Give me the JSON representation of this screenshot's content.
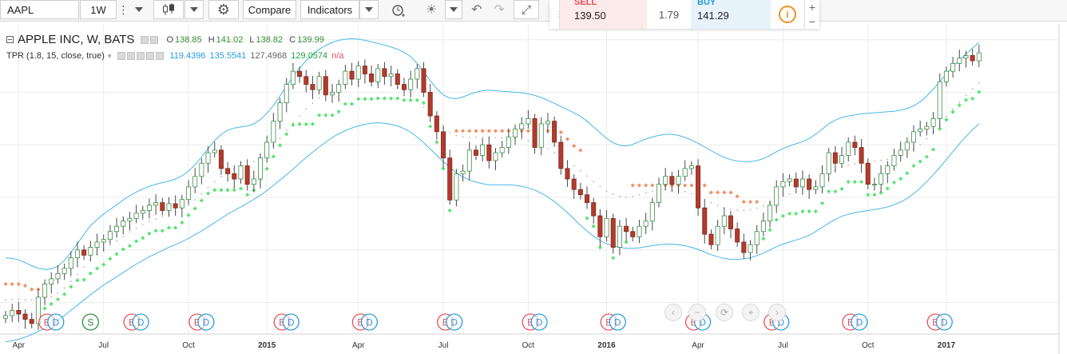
{
  "toolbar": {
    "symbol": "AAPL",
    "interval": "1W",
    "compare_label": "Compare",
    "indicators_label": "Indicators"
  },
  "trade": {
    "sell_label": "SELL",
    "sell_price": "139.50",
    "spread": "1.79",
    "buy_label": "BUY",
    "buy_price": "141.29",
    "info_icon": "i",
    "plus": "+",
    "minus": "−"
  },
  "legend": {
    "title": "APPLE INC, W, BATS",
    "open_label": "O",
    "open": "138.85",
    "high_label": "H",
    "high": "141.02",
    "low_label": "L",
    "low": "138.82",
    "close_label": "C",
    "close": "139.99",
    "indicator_name": "TPR (1.8, 15, close, true)",
    "indicator_values": [
      "119.4396",
      "135.5541",
      "127.4968",
      "129.0574",
      "n/a"
    ]
  },
  "colors": {
    "up_body": "#ffffff",
    "up_border": "#3d8f47",
    "down_body": "#b53a2b",
    "wick": "#4a4a4a",
    "band": "#47b8e8",
    "sar_green": "#4de36b",
    "sar_orange": "#f08a5d",
    "mid_dots": "#c8a8a8",
    "grid": "#ececec",
    "earnings_red": "#e8505b",
    "dividend_blue": "#2a9be0",
    "split_green": "#2e8b3a"
  },
  "nav_icons": [
    "chevron-left-icon",
    "minus-icon",
    "reset-icon",
    "plus-icon",
    "chevron-right-icon"
  ],
  "chart_data": {
    "type": "candlestick",
    "title": "APPLE INC, W, BATS",
    "ylim": [
      89,
      148
    ],
    "x_ticks": [
      {
        "label": "Apr",
        "week": 2,
        "bold": false
      },
      {
        "label": "Jul",
        "week": 15,
        "bold": false
      },
      {
        "label": "Oct",
        "week": 28,
        "bold": false
      },
      {
        "label": "2015",
        "week": 40,
        "bold": true
      },
      {
        "label": "Apr",
        "week": 54,
        "bold": false
      },
      {
        "label": "Jul",
        "week": 67,
        "bold": false
      },
      {
        "label": "Oct",
        "week": 80,
        "bold": false
      },
      {
        "label": "2016",
        "week": 92,
        "bold": true
      },
      {
        "label": "Apr",
        "week": 106,
        "bold": false
      },
      {
        "label": "Jul",
        "week": 119,
        "bold": false
      },
      {
        "label": "Oct",
        "week": 132,
        "bold": false
      },
      {
        "label": "2017",
        "week": 144,
        "bold": true
      }
    ],
    "closes": [
      92.5,
      93.5,
      92.8,
      91.8,
      91.0,
      96.0,
      98.5,
      99.5,
      100.5,
      101.5,
      103.5,
      105.0,
      104.0,
      105.5,
      106.5,
      107.0,
      108.5,
      109.5,
      110.5,
      111.0,
      112.0,
      112.5,
      113.5,
      114.0,
      112.5,
      113.8,
      113.0,
      114.6,
      117.0,
      119.0,
      121.5,
      123.5,
      124.0,
      120.5,
      119.5,
      118.5,
      121.0,
      117.5,
      118.5,
      122.5,
      125.5,
      129.5,
      133.0,
      136.5,
      139.0,
      138.0,
      136.5,
      135.5,
      138.0,
      134.5,
      135.0,
      136.5,
      139.0,
      137.5,
      140.0,
      138.5,
      137.0,
      139.5,
      138.0,
      138.5,
      136.5,
      135.5,
      137.5,
      139.5,
      135.0,
      130.5,
      127.5,
      122.5,
      114.5,
      119.5,
      120.0,
      124.0,
      123.0,
      125.0,
      122.0,
      123.5,
      124.5,
      126.5,
      128.0,
      129.0,
      130.0,
      124.5,
      129.0,
      129.5,
      125.5,
      120.5,
      118.5,
      116.5,
      115.5,
      114.0,
      111.5,
      107.5,
      111.0,
      105.5,
      109.5,
      108.5,
      107.5,
      109.5,
      110.5,
      114.0,
      117.5,
      119.0,
      117.5,
      119.0,
      120.5,
      121.0,
      113.0,
      108.0,
      106.0,
      109.5,
      111.5,
      109.0,
      106.5,
      104.5,
      106.0,
      108.5,
      110.5,
      113.5,
      117.0,
      118.0,
      118.5,
      117.0,
      118.5,
      116.5,
      117.0,
      119.5,
      123.5,
      121.5,
      123.0,
      125.5,
      124.5,
      121.5,
      117.5,
      117.5,
      119.5,
      121.0,
      123.0,
      124.0,
      125.5,
      127.5,
      128.0,
      128.5,
      130.0,
      137.0,
      139.0,
      140.5,
      141.5,
      142.0,
      141.0,
      142.5
    ],
    "upper_band": [
      103.5,
      103.4,
      103.1,
      102.6,
      102.0,
      101.5,
      101.3,
      101.4,
      101.9,
      103.0,
      104.5,
      106.2,
      108.0,
      109.6,
      110.8,
      111.8,
      112.7,
      113.6,
      114.5,
      115.3,
      116.0,
      116.6,
      117.1,
      117.5,
      117.8,
      118.1,
      118.5,
      119.1,
      120.0,
      121.2,
      122.7,
      124.3,
      125.8,
      127.0,
      127.8,
      128.2,
      128.4,
      128.6,
      129.0,
      129.8,
      131.0,
      132.5,
      134.3,
      136.2,
      138.0,
      139.6,
      141.0,
      142.2,
      143.2,
      143.9,
      144.5,
      144.9,
      145.1,
      145.2,
      145.1,
      144.9,
      144.6,
      144.3,
      144.0,
      143.6,
      143.2,
      142.6,
      141.8,
      140.5,
      138.9,
      137.2,
      135.7,
      134.5,
      133.9,
      133.8,
      134.1,
      134.6,
      135.0,
      135.3,
      135.4,
      135.3,
      135.2,
      135.1,
      135.0,
      134.9,
      134.7,
      134.4,
      134.0,
      133.5,
      132.9,
      132.3,
      131.7,
      131.1,
      130.4,
      129.5,
      128.4,
      127.3,
      126.2,
      125.4,
      124.9,
      124.8,
      125.1,
      125.6,
      126.1,
      126.5,
      126.8,
      127.0,
      127.0,
      126.8,
      126.4,
      125.9,
      125.3,
      124.6,
      123.9,
      123.2,
      122.6,
      122.2,
      121.9,
      121.8,
      121.8,
      122.0,
      122.4,
      123.0,
      123.7,
      124.3,
      124.8,
      125.2,
      125.6,
      126.2,
      127.0,
      128.0,
      129.0,
      129.7,
      130.2,
      130.5,
      130.7,
      130.9,
      131.0,
      131.1,
      131.2,
      131.3,
      131.4,
      131.6,
      131.9,
      132.4,
      133.2,
      134.3,
      135.6,
      137.0,
      138.5,
      139.9,
      141.1,
      142.3,
      143.4,
      144.5
    ],
    "lower_band": [
      87.5,
      87.7,
      88.0,
      88.4,
      88.9,
      89.5,
      90.1,
      90.8,
      91.6,
      92.5,
      93.5,
      94.5,
      95.5,
      96.5,
      97.4,
      98.3,
      99.1,
      99.9,
      100.7,
      101.5,
      102.3,
      103.0,
      103.7,
      104.3,
      104.9,
      105.5,
      106.0,
      106.6,
      107.2,
      107.9,
      108.6,
      109.4,
      110.2,
      111.0,
      111.8,
      112.5,
      113.2,
      113.9,
      114.6,
      115.4,
      116.3,
      117.3,
      118.3,
      119.3,
      120.4,
      121.5,
      122.6,
      123.6,
      124.6,
      125.5,
      126.4,
      127.1,
      127.7,
      128.2,
      128.6,
      128.9,
      129.1,
      129.2,
      129.1,
      128.9,
      128.6,
      128.1,
      127.4,
      126.5,
      125.4,
      124.2,
      123.0,
      121.8,
      120.7,
      119.7,
      118.9,
      118.3,
      117.9,
      117.6,
      117.4,
      117.4,
      117.4,
      117.4,
      117.3,
      117.1,
      116.8,
      116.4,
      115.8,
      115.1,
      114.2,
      113.2,
      112.1,
      110.9,
      109.7,
      108.6,
      107.6,
      106.8,
      106.2,
      105.8,
      105.5,
      105.3,
      105.3,
      105.4,
      105.6,
      105.8,
      106.0,
      106.1,
      106.1,
      106.0,
      105.8,
      105.5,
      105.1,
      104.6,
      104.1,
      103.7,
      103.4,
      103.2,
      103.2,
      103.3,
      103.5,
      103.9,
      104.4,
      105.0,
      105.6,
      106.1,
      106.5,
      106.9,
      107.3,
      107.8,
      108.5,
      109.3,
      110.1,
      110.8,
      111.4,
      111.8,
      112.1,
      112.3,
      112.5,
      112.7,
      112.9,
      113.2,
      113.6,
      114.1,
      114.8,
      115.7,
      116.8,
      118.0,
      119.3,
      120.7,
      122.2,
      123.7,
      125.2,
      126.6,
      127.9,
      129.0
    ],
    "sar": {
      "orange_ranges": [
        [
          0,
          5
        ],
        [
          69,
          88
        ],
        [
          96,
          115
        ]
      ],
      "green_note": "support below price elsewhere"
    },
    "events": [
      {
        "week": 7,
        "letters": [
          "E",
          "D"
        ]
      },
      {
        "week": 13,
        "letters": [
          "S"
        ]
      },
      {
        "week": 20,
        "letters": [
          "E",
          "D"
        ]
      },
      {
        "week": 30,
        "letters": [
          "E",
          "D"
        ]
      },
      {
        "week": 43,
        "letters": [
          "E",
          "D"
        ]
      },
      {
        "week": 55,
        "letters": [
          "E",
          "D"
        ]
      },
      {
        "week": 68,
        "letters": [
          "E",
          "D"
        ]
      },
      {
        "week": 81,
        "letters": [
          "E",
          "D"
        ]
      },
      {
        "week": 93,
        "letters": [
          "E",
          "D"
        ]
      },
      {
        "week": 106,
        "letters": [
          "E",
          "D"
        ]
      },
      {
        "week": 118,
        "letters": [
          "E",
          "D"
        ]
      },
      {
        "week": 130,
        "letters": [
          "E",
          "D"
        ]
      },
      {
        "week": 143,
        "letters": [
          "E",
          "D"
        ]
      }
    ]
  }
}
